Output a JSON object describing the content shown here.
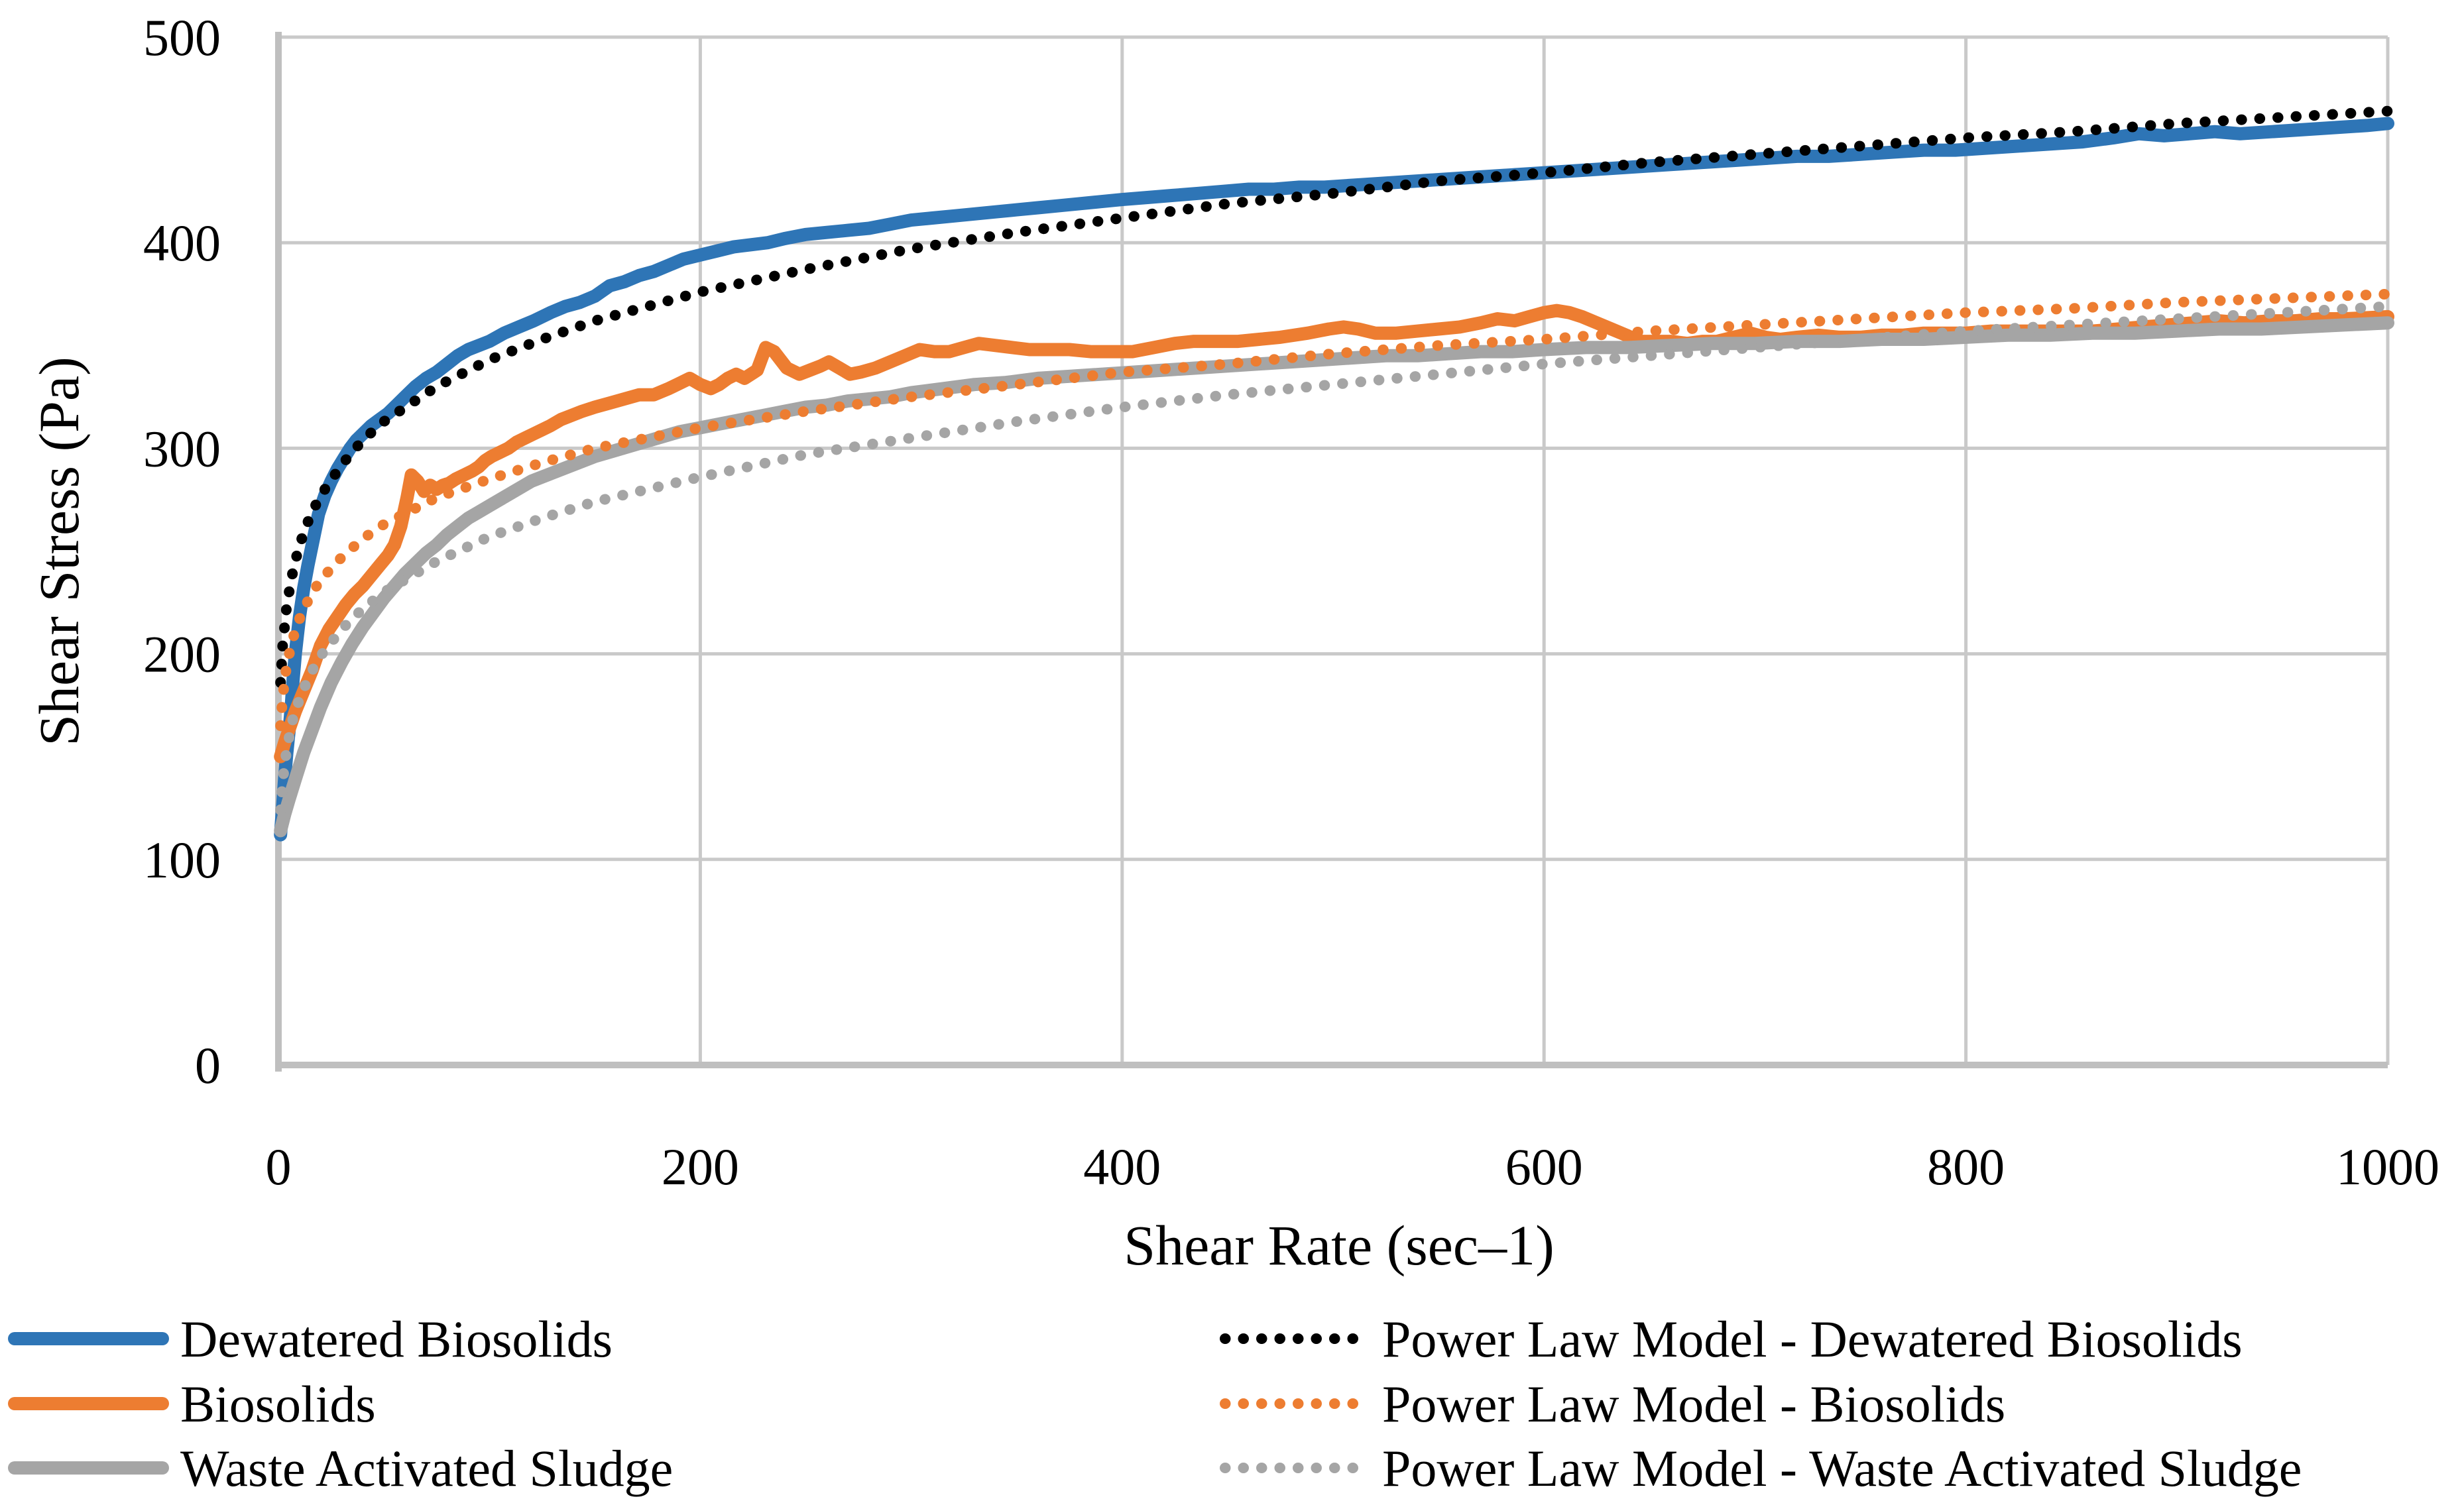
{
  "chart_data": {
    "type": "line",
    "title": "",
    "xlabel": "Shear Rate (sec–1)",
    "ylabel": "Shear Stress (Pa)",
    "xlim": [
      0,
      1000
    ],
    "ylim": [
      0,
      500
    ],
    "xticks": [
      0,
      200,
      400,
      600,
      800,
      1000
    ],
    "yticks": [
      0,
      100,
      200,
      300,
      400,
      500
    ],
    "grid": true,
    "legend_position": "bottom-two-columns",
    "colors": {
      "grid": "#C9C9C9",
      "axis": "#BFBFBF",
      "text": "#000000",
      "background": "#FFFFFF",
      "blue": "#2E75B6",
      "orange": "#ED7D31",
      "gray": "#A5A5A5",
      "black": "#000000"
    },
    "series": [
      {
        "name": "Dewatered Biosolids",
        "color": "#2E75B6",
        "line_style": "solid",
        "legend_column": "left",
        "x": [
          1,
          2,
          3,
          4,
          5,
          6,
          7,
          8,
          9,
          10,
          12,
          14,
          16,
          19,
          22,
          25,
          28,
          31,
          34,
          37,
          40,
          44,
          48,
          52,
          56,
          60,
          65,
          70,
          75,
          80,
          85,
          90,
          95,
          100,
          107,
          114,
          121,
          129,
          136,
          143,
          150,
          157,
          164,
          171,
          178,
          185,
          192,
          200,
          208,
          216,
          224,
          232,
          240,
          250,
          260,
          270,
          280,
          290,
          300,
          310,
          320,
          330,
          340,
          350,
          360,
          370,
          380,
          390,
          400,
          412,
          424,
          436,
          448,
          460,
          472,
          484,
          496,
          510,
          525,
          540,
          555,
          570,
          585,
          600,
          615,
          630,
          645,
          660,
          675,
          690,
          705,
          720,
          735,
          750,
          765,
          780,
          795,
          810,
          825,
          840,
          855,
          870,
          882,
          894,
          906,
          918,
          930,
          945,
          960,
          975,
          990,
          1000
        ],
        "y": [
          112,
          126,
          140,
          152,
          162,
          173,
          188,
          200,
          209,
          218,
          232,
          243,
          253,
          268,
          277,
          284,
          290,
          295,
          300,
          304,
          307,
          311,
          314,
          317,
          321,
          325,
          330,
          334,
          337,
          341,
          345,
          348,
          350,
          352,
          356,
          359,
          362,
          366,
          369,
          371,
          374,
          379,
          381,
          384,
          386,
          389,
          392,
          394,
          396,
          398,
          399,
          400,
          402,
          404,
          405,
          406,
          407,
          409,
          411,
          412,
          413,
          414,
          415,
          416,
          417,
          418,
          419,
          420,
          421,
          422,
          423,
          424,
          425,
          426,
          426,
          427,
          427,
          428,
          429,
          430,
          431,
          432,
          433,
          434,
          435,
          436,
          437,
          438,
          439,
          440,
          441,
          442,
          442,
          443,
          444,
          445,
          445,
          446,
          447,
          448,
          449,
          451,
          453,
          452,
          453,
          454,
          453,
          454,
          455,
          456,
          457,
          458
        ]
      },
      {
        "name": "Biosolids",
        "color": "#ED7D31",
        "line_style": "solid",
        "legend_column": "left",
        "x": [
          1,
          3,
          5,
          8,
          12,
          16,
          20,
          24,
          28,
          32,
          36,
          40,
          44,
          48,
          52,
          55,
          58,
          61,
          63,
          66,
          69,
          72,
          75,
          78,
          81,
          84,
          88,
          92,
          95,
          98,
          101,
          105,
          109,
          113,
          117,
          121,
          125,
          129,
          134,
          139,
          144,
          150,
          157,
          164,
          171,
          178,
          185,
          191,
          195,
          200,
          205,
          209,
          213,
          217,
          221,
          227,
          231,
          235,
          241,
          247,
          252,
          257,
          261,
          266,
          271,
          276,
          283,
          290,
          297,
          304,
          311,
          318,
          325,
          332,
          340,
          348,
          356,
          365,
          375,
          385,
          395,
          405,
          415,
          425,
          434,
          445,
          455,
          465,
          475,
          488,
          498,
          505,
          512,
          520,
          530,
          540,
          550,
          560,
          570,
          578,
          586,
          593,
          600,
          606,
          612,
          618,
          625,
          632,
          639,
          645,
          652,
          660,
          668,
          675,
          682,
          690,
          698,
          705,
          712,
          720,
          730,
          740,
          750,
          760,
          770,
          780,
          790,
          800,
          812,
          824,
          836,
          848,
          860,
          872,
          884,
          896,
          908,
          920,
          932,
          944,
          956,
          968,
          980,
          1000
        ],
        "y": [
          150,
          157,
          163,
          172,
          182,
          192,
          204,
          212,
          218,
          224,
          229,
          233,
          238,
          243,
          248,
          253,
          262,
          276,
          287,
          284,
          279,
          282,
          280,
          282,
          283,
          285,
          287,
          289,
          291,
          294,
          296,
          298,
          300,
          303,
          305,
          307,
          309,
          311,
          314,
          316,
          318,
          320,
          322,
          324,
          326,
          326,
          329,
          332,
          334,
          331,
          329,
          331,
          334,
          336,
          334,
          338,
          349,
          347,
          339,
          336,
          338,
          340,
          342,
          339,
          336,
          337,
          339,
          342,
          345,
          348,
          347,
          347,
          349,
          351,
          350,
          349,
          348,
          348,
          348,
          347,
          347,
          347,
          349,
          351,
          352,
          352,
          352,
          353,
          354,
          356,
          358,
          359,
          358,
          356,
          356,
          357,
          358,
          359,
          361,
          363,
          362,
          364,
          366,
          367,
          366,
          364,
          361,
          358,
          355,
          352,
          352,
          352,
          351,
          352,
          352,
          354,
          356,
          354,
          353,
          354,
          355,
          354,
          354,
          355,
          355,
          356,
          356,
          356,
          357,
          357,
          357,
          357,
          357,
          358,
          359,
          360,
          361,
          362,
          361,
          362,
          362,
          363,
          363,
          364
        ]
      },
      {
        "name": "Waste Activated Sludge",
        "color": "#A5A5A5",
        "line_style": "solid",
        "legend_column": "left",
        "x": [
          1,
          3,
          5,
          8,
          12,
          16,
          20,
          25,
          30,
          35,
          40,
          45,
          50,
          55,
          60,
          65,
          70,
          75,
          80,
          85,
          90,
          95,
          100,
          110,
          120,
          130,
          140,
          150,
          160,
          170,
          180,
          190,
          200,
          210,
          220,
          230,
          240,
          250,
          260,
          270,
          280,
          290,
          300,
          315,
          330,
          345,
          360,
          375,
          390,
          405,
          420,
          435,
          450,
          465,
          480,
          495,
          510,
          525,
          540,
          555,
          570,
          585,
          600,
          620,
          640,
          660,
          680,
          700,
          720,
          740,
          760,
          780,
          800,
          820,
          840,
          860,
          880,
          900,
          920,
          940,
          960,
          980,
          1000
        ],
        "y": [
          114,
          122,
          129,
          139,
          152,
          163,
          174,
          186,
          196,
          205,
          213,
          220,
          227,
          233,
          239,
          244,
          249,
          253,
          258,
          262,
          266,
          269,
          272,
          278,
          284,
          288,
          292,
          296,
          299,
          302,
          305,
          308,
          310,
          312,
          314,
          316,
          318,
          320,
          321,
          323,
          324,
          325,
          327,
          329,
          331,
          332,
          334,
          335,
          336,
          337,
          338,
          339,
          340,
          341,
          342,
          343,
          344,
          345,
          345,
          346,
          347,
          347,
          348,
          349,
          349,
          350,
          351,
          351,
          352,
          352,
          353,
          353,
          354,
          355,
          355,
          356,
          356,
          357,
          358,
          358,
          359,
          360,
          361
        ]
      },
      {
        "name": "Power Law Model - Dewatered Biosolids",
        "color": "#000000",
        "line_style": "dotted",
        "legend_column": "right",
        "x": [
          1,
          2,
          4,
          7,
          10,
          15,
          20,
          30,
          40,
          50,
          75,
          100,
          125,
          150,
          175,
          200,
          250,
          300,
          350,
          400,
          450,
          500,
          550,
          600,
          650,
          700,
          750,
          800,
          850,
          900,
          950,
          1000
        ],
        "y": [
          186,
          204,
          224,
          241,
          253,
          267,
          277,
          292,
          304,
          313,
          330,
          343,
          353,
          362,
          369,
          376,
          387,
          397,
          405,
          412,
          419,
          424,
          430,
          434,
          439,
          443,
          447,
          451,
          454,
          458,
          461,
          464
        ]
      },
      {
        "name": "Power Law Model - Biosolids",
        "color": "#ED7D31",
        "line_style": "dotted",
        "legend_column": "right",
        "x": [
          1,
          2,
          4,
          7,
          10,
          15,
          20,
          30,
          40,
          50,
          75,
          100,
          125,
          150,
          175,
          200,
          250,
          300,
          350,
          400,
          450,
          500,
          550,
          600,
          650,
          700,
          750,
          800,
          850,
          900,
          950,
          1000
        ],
        "y": [
          165,
          179,
          195,
          208,
          217,
          228,
          236,
          247,
          256,
          263,
          276,
          285,
          293,
          300,
          305,
          310,
          318,
          325,
          331,
          337,
          341,
          346,
          350,
          353,
          357,
          360,
          363,
          366,
          368,
          371,
          373,
          375
        ]
      },
      {
        "name": "Power Law Model - Waste Activated Sludge",
        "color": "#A5A5A5",
        "line_style": "dotted",
        "legend_column": "right",
        "x": [
          1,
          2,
          4,
          7,
          10,
          15,
          20,
          30,
          40,
          50,
          75,
          100,
          125,
          150,
          175,
          200,
          250,
          300,
          350,
          400,
          450,
          500,
          550,
          600,
          650,
          700,
          750,
          800,
          850,
          900,
          950,
          1000
        ],
        "y": [
          124,
          138,
          154,
          169,
          178,
          190,
          199,
          212,
          222,
          230,
          245,
          257,
          266,
          274,
          280,
          286,
          297,
          305,
          313,
          320,
          326,
          331,
          336,
          341,
          345,
          349,
          353,
          357,
          360,
          363,
          366,
          369
        ]
      }
    ]
  }
}
